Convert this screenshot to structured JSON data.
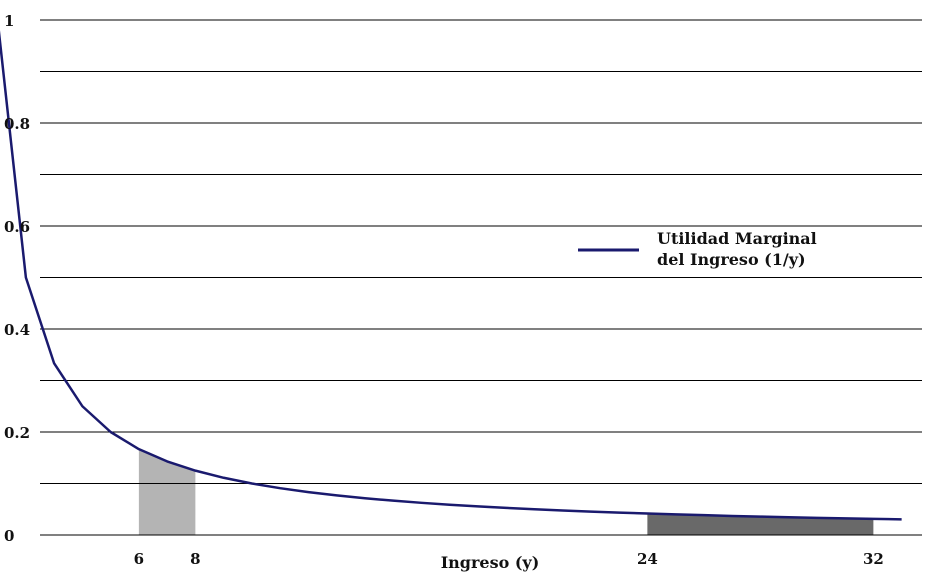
{
  "chart_data": {
    "type": "line",
    "xlabel": "Ingreso (y)",
    "ylabel": "",
    "xlim": [
      1,
      33
    ],
    "ylim": [
      0,
      1
    ],
    "grid": true,
    "legend_position": "right",
    "x_ticks": [
      {
        "value": 6,
        "label": "6"
      },
      {
        "value": 8,
        "label": "8"
      },
      {
        "value": 24,
        "label": "24"
      },
      {
        "value": 32,
        "label": "32"
      }
    ],
    "y_ticks": [
      {
        "value": 0,
        "label": "0"
      },
      {
        "value": 0.2,
        "label": "0.2"
      },
      {
        "value": 0.4,
        "label": "0.4"
      },
      {
        "value": 0.6,
        "label": "0.6"
      },
      {
        "value": 0.8,
        "label": "0.8"
      },
      {
        "value": 1,
        "label": "1"
      }
    ],
    "series": [
      {
        "name_lines": [
          "Utilidad Marginal",
          "del Ingreso (1/y)"
        ],
        "color": "#1a1a6e",
        "x": [
          1,
          2,
          3,
          4,
          5,
          6,
          7,
          8,
          9,
          10,
          11,
          12,
          13,
          14,
          15,
          16,
          17,
          18,
          19,
          20,
          21,
          22,
          23,
          24,
          25,
          26,
          27,
          28,
          29,
          30,
          31,
          32,
          33
        ],
        "y": [
          1,
          0.5,
          0.3333,
          0.25,
          0.2,
          0.1667,
          0.1429,
          0.125,
          0.1111,
          0.1,
          0.0909,
          0.0833,
          0.0769,
          0.0714,
          0.0667,
          0.0625,
          0.0588,
          0.0556,
          0.0526,
          0.05,
          0.0476,
          0.0455,
          0.0435,
          0.0417,
          0.04,
          0.0385,
          0.037,
          0.0357,
          0.0345,
          0.0333,
          0.0323,
          0.0313,
          0.0303
        ]
      }
    ],
    "shaded_regions": [
      {
        "x_from": 6,
        "x_to": 8,
        "color": "#b4b4b4"
      },
      {
        "x_from": 24,
        "x_to": 32,
        "color": "#696969"
      }
    ],
    "colors": {
      "grid": "#000000",
      "line": "#1a1a6e",
      "light_fill": "#b4b4b4",
      "dark_fill": "#696969"
    }
  }
}
